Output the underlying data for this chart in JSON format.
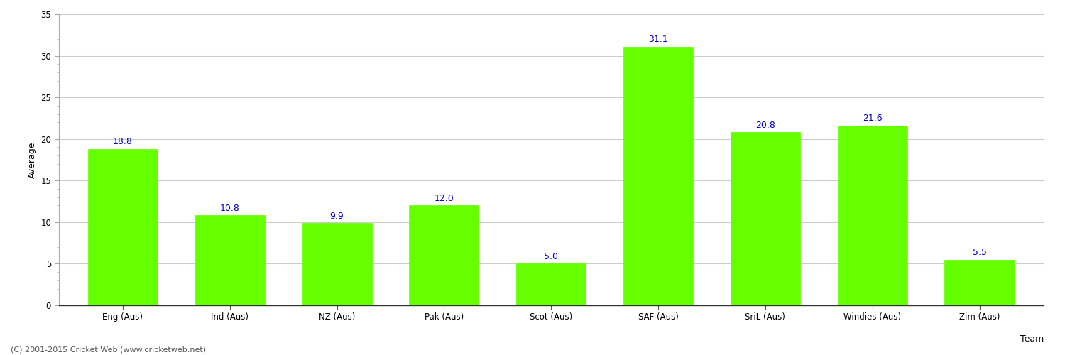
{
  "categories": [
    "Eng (Aus)",
    "Ind (Aus)",
    "NZ (Aus)",
    "Pak (Aus)",
    "Scot (Aus)",
    "SAF (Aus)",
    "SriL (Aus)",
    "Windies (Aus)",
    "Zim (Aus)"
  ],
  "values": [
    18.8,
    10.8,
    9.9,
    12.0,
    5.0,
    31.1,
    20.8,
    21.6,
    5.5
  ],
  "bar_color": "#66ff00",
  "bar_edge_color": "#66ff00",
  "label_color": "#0000cc",
  "xlabel": "Team",
  "ylabel": "Average",
  "ylim": [
    0,
    35
  ],
  "yticks": [
    0,
    5,
    10,
    15,
    20,
    25,
    30,
    35
  ],
  "grid_color": "#cccccc",
  "background_color": "#ffffff",
  "footer": "(C) 2001-2015 Cricket Web (www.cricketweb.net)",
  "label_fontsize": 9,
  "axis_label_fontsize": 9,
  "tick_fontsize": 8.5,
  "footer_fontsize": 8
}
